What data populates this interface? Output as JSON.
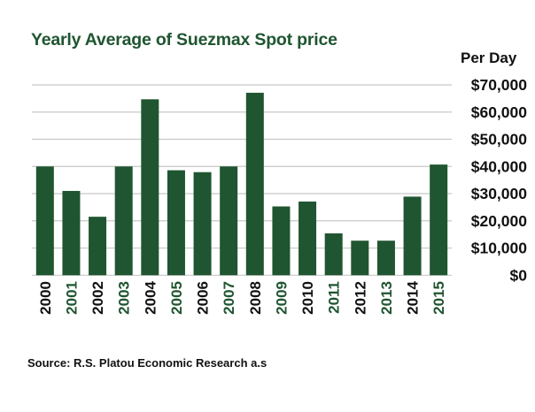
{
  "chart_data": {
    "type": "bar",
    "title": "Yearly Average of Suezmax Spot price",
    "xlabel": "",
    "ylabel": "Per Day",
    "categories": [
      "2000",
      "2001",
      "2002",
      "2003",
      "2004",
      "2005",
      "2006",
      "2007",
      "2008",
      "2009",
      "2010",
      "2011",
      "2012",
      "2013",
      "2014",
      "2015"
    ],
    "values": [
      40000,
      31000,
      21500,
      40000,
      64700,
      38600,
      37900,
      40000,
      67100,
      25300,
      27100,
      15400,
      12700,
      12700,
      28900,
      40700
    ],
    "ylim": [
      0,
      70000
    ],
    "yticks": [
      0,
      10000,
      20000,
      30000,
      40000,
      50000,
      60000,
      70000
    ],
    "ytick_labels": [
      "$0",
      "$10,000",
      "$20,000",
      "$30,000",
      "$40,000",
      "$50,000",
      "$60,000",
      "$70,000"
    ],
    "y_axis_side": "right",
    "grid": true,
    "legend": "none",
    "colors": {
      "bar": "#1f5530",
      "tick_even": "#111111",
      "tick_odd": "#1f5530",
      "grid": "#c8c8c8"
    },
    "source": "Source: R.S. Platou Economic Research a.s"
  }
}
